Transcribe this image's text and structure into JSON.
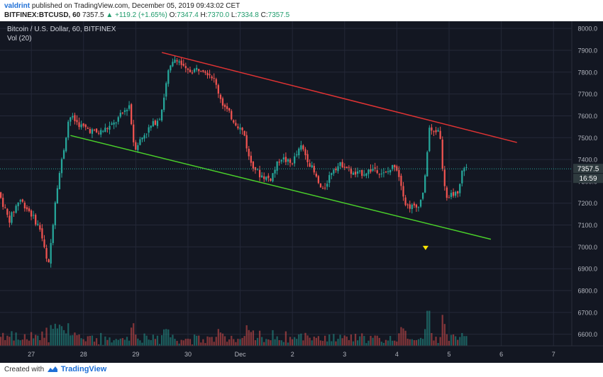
{
  "header": {
    "author": "valdrint",
    "published_text": "published on TradingView.com, December 05, 2019 09:43:02 CET",
    "symbol": "BITFINEX:BTCUSD, 60",
    "last": "7357.5",
    "change": "▲ +119.2 (+1.65%)",
    "o_label": "O:",
    "o": "7347.4",
    "h_label": "H:",
    "h": "7370.0",
    "l_label": "L:",
    "l": "7334.8",
    "c_label": "C:",
    "c": "7357.5"
  },
  "legend": {
    "series_title": "Bitcoin / U.S. Dollar, 60, BITFINEX",
    "vol_title": "Vol (20)"
  },
  "price_tag": {
    "value": "7357.5",
    "countdown": "16:59"
  },
  "footer": {
    "created_with": "Created with",
    "brand": "TradingView"
  },
  "colors": {
    "background": "#131722",
    "up": "#26a69a",
    "down": "#ef5350",
    "grid": "#242838",
    "resistance": "#e03333",
    "support": "#4ad02a",
    "price_tag": "#2f3b3f",
    "marker": "#ffe600"
  },
  "chart_data": {
    "type": "candlestick",
    "ylim": [
      6560,
      8020
    ],
    "yticks": [
      6600,
      6700,
      6800,
      6900,
      7000,
      7100,
      7200,
      7300,
      7400,
      7500,
      7600,
      7700,
      7800,
      7900,
      8000
    ],
    "ytick_labels": [
      "6600.0",
      "6700.0",
      "6800.0",
      "6900.0",
      "7000.0",
      "7100.0",
      "7200.0",
      "7300.0",
      "7400.0",
      "7500.0",
      "7600.0",
      "7700.0",
      "7800.0",
      "7900.0",
      "8000.0"
    ],
    "xlim": [
      26.4,
      7.35
    ],
    "xticks": [
      {
        "label": "27",
        "x": 27
      },
      {
        "label": "28",
        "x": 28
      },
      {
        "label": "29",
        "x": 29
      },
      {
        "label": "30",
        "x": 30
      },
      {
        "label": "Dec",
        "x": 31
      },
      {
        "label": "2",
        "x": 32
      },
      {
        "label": "3",
        "x": 33
      },
      {
        "label": "4",
        "x": 34
      },
      {
        "label": "5",
        "x": 35
      },
      {
        "label": "6",
        "x": 36
      },
      {
        "label": "7",
        "x": 37
      }
    ],
    "price_path": [
      [
        26.4,
        7250
      ],
      [
        26.6,
        7120
      ],
      [
        26.8,
        7220
      ],
      [
        27.0,
        7160
      ],
      [
        27.2,
        7080
      ],
      [
        27.35,
        6900
      ],
      [
        27.5,
        7250
      ],
      [
        27.65,
        7450
      ],
      [
        27.75,
        7600
      ],
      [
        28.0,
        7550
      ],
      [
        28.3,
        7520
      ],
      [
        28.6,
        7560
      ],
      [
        28.9,
        7650
      ],
      [
        29.0,
        7450
      ],
      [
        29.2,
        7520
      ],
      [
        29.5,
        7600
      ],
      [
        29.65,
        7800
      ],
      [
        29.8,
        7870
      ],
      [
        30.0,
        7800
      ],
      [
        30.3,
        7820
      ],
      [
        30.5,
        7780
      ],
      [
        30.7,
        7650
      ],
      [
        30.9,
        7580
      ],
      [
        31.1,
        7520
      ],
      [
        31.2,
        7400
      ],
      [
        31.4,
        7330
      ],
      [
        31.6,
        7310
      ],
      [
        31.8,
        7410
      ],
      [
        32.0,
        7380
      ],
      [
        32.2,
        7460
      ],
      [
        32.4,
        7360
      ],
      [
        32.6,
        7250
      ],
      [
        32.8,
        7360
      ],
      [
        33.0,
        7380
      ],
      [
        33.2,
        7330
      ],
      [
        33.4,
        7340
      ],
      [
        33.6,
        7360
      ],
      [
        33.8,
        7330
      ],
      [
        34.0,
        7380
      ],
      [
        34.1,
        7300
      ],
      [
        34.2,
        7190
      ],
      [
        34.4,
        7180
      ],
      [
        34.5,
        7220
      ],
      [
        34.6,
        7360
      ],
      [
        34.62,
        7560
      ],
      [
        34.7,
        7520
      ],
      [
        34.85,
        7540
      ],
      [
        34.9,
        7350
      ],
      [
        35.0,
        7200
      ],
      [
        35.1,
        7250
      ],
      [
        35.2,
        7230
      ],
      [
        35.3,
        7380
      ],
      [
        35.35,
        7357.5
      ]
    ],
    "resistance_line": {
      "from": [
        29.5,
        7890
      ],
      "to": [
        36.3,
        7478
      ]
    },
    "support_line": {
      "from": [
        27.75,
        7510
      ],
      "to": [
        35.8,
        7035
      ]
    },
    "marker_x": 34.55,
    "marker_price": 6995,
    "volume_max_height_frac": 0.18
  }
}
